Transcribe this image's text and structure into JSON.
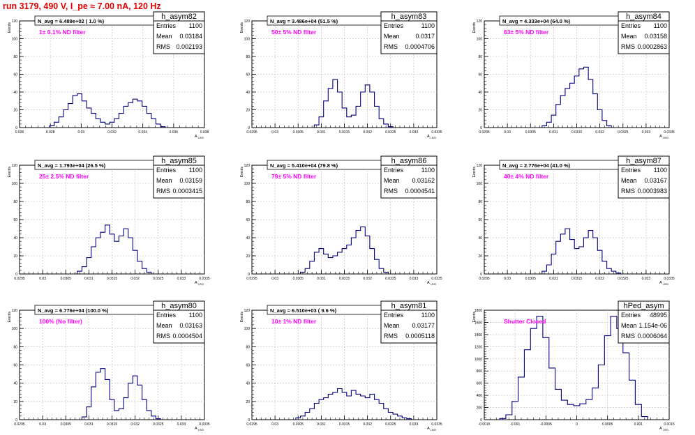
{
  "title": "run 3179,   490 V, I_pe ≈ 7.00 nA, 120 Hz",
  "colors": {
    "title": "#e00000",
    "annotation": "#ff00ff",
    "histogram": "#000080",
    "grid": "#c8c8c8"
  },
  "stat_labels": {
    "entries": "Entries",
    "mean": "Mean",
    "rms": "RMS"
  },
  "chart_data": [
    {
      "type": "histogram",
      "name": "h_asym82",
      "navg": "N_avg = 6.489e+02 ( 1.0 %)",
      "annotation": "1± 0.1% ND filter",
      "ylabel": "Events",
      "xlabel": "A",
      "xlabel_sub": "LR/D",
      "xlim": [
        0.026,
        0.038
      ],
      "ylim": [
        0,
        120
      ],
      "xticks": [
        "0.026",
        "0.028",
        "0.03",
        "0.032",
        "0.034",
        "0.036",
        "0.038"
      ],
      "yticks": [
        "0",
        "20",
        "40",
        "60",
        "80",
        "100",
        "120"
      ],
      "stats": {
        "entries": "1100",
        "mean": "0.03184",
        "rms": "0.002193"
      },
      "x": [
        0.0281,
        0.0284,
        0.0287,
        0.029,
        0.0293,
        0.0296,
        0.0299,
        0.0302,
        0.0305,
        0.0308,
        0.0311,
        0.0314,
        0.0317,
        0.032,
        0.0323,
        0.0326,
        0.0329,
        0.0332,
        0.0335,
        0.0338,
        0.0341,
        0.0344,
        0.0347,
        0.035,
        0.0353
      ],
      "y": [
        2,
        6,
        12,
        20,
        27,
        36,
        38,
        30,
        22,
        16,
        10,
        6,
        4,
        6,
        10,
        16,
        24,
        28,
        32,
        30,
        24,
        16,
        10,
        4,
        1
      ]
    },
    {
      "type": "histogram",
      "name": "h_asym83",
      "navg": "N_avg = 3.486e+04 (51.5 %)",
      "annotation": "50± 5% ND filter",
      "ylabel": "Events",
      "xlabel": "A",
      "xlabel_sub": "LR/D",
      "xlim": [
        0.0295,
        0.0335
      ],
      "ylim": [
        0,
        120
      ],
      "xticks": [
        "0.0295",
        "0.03",
        "0.0305",
        "0.031",
        "0.0315",
        "0.032",
        "0.0325",
        "0.033",
        "0.0335"
      ],
      "yticks": [
        "0",
        "20",
        "40",
        "60",
        "80",
        "100",
        "120"
      ],
      "stats": {
        "entries": "1100",
        "mean": "0.0317",
        "rms": "0.0004706"
      },
      "x": [
        0.0309,
        0.031,
        0.0311,
        0.0312,
        0.0313,
        0.0314,
        0.0315,
        0.0316,
        0.0317,
        0.0318,
        0.0319,
        0.032,
        0.0321,
        0.0322,
        0.0323,
        0.0324,
        0.0325
      ],
      "y": [
        3,
        12,
        30,
        44,
        54,
        40,
        22,
        12,
        14,
        24,
        40,
        48,
        40,
        24,
        10,
        4,
        1
      ]
    },
    {
      "type": "histogram",
      "name": "h_asym84",
      "navg": "N_avg = 4.333e+04 (64.0 %)",
      "annotation": "63± 5% ND filter",
      "ylabel": "Events",
      "xlabel": "A",
      "xlabel_sub": "LR/D",
      "xlim": [
        0.0295,
        0.0335
      ],
      "ylim": [
        0,
        120
      ],
      "xticks": [
        "0.0295",
        "0.03",
        "0.0305",
        "0.031",
        "0.0315",
        "0.032",
        "0.0325",
        "0.033",
        "0.0335"
      ],
      "yticks": [
        "0",
        "20",
        "40",
        "60",
        "80",
        "100",
        "120"
      ],
      "stats": {
        "entries": "1100",
        "mean": "0.03158",
        "rms": "0.0002863"
      },
      "x": [
        0.0308,
        0.0309,
        0.031,
        0.0311,
        0.0312,
        0.0313,
        0.0314,
        0.0315,
        0.0316,
        0.0317,
        0.0318,
        0.0319,
        0.032,
        0.0321,
        0.0322
      ],
      "y": [
        2,
        6,
        14,
        26,
        36,
        44,
        50,
        58,
        66,
        68,
        54,
        38,
        20,
        8,
        2
      ]
    },
    {
      "type": "histogram",
      "name": "h_asym85",
      "navg": "N_avg = 1.793e+04 (26.5 %)",
      "annotation": "25± 2.5% ND filter",
      "ylabel": "Events",
      "xlabel": "A",
      "xlabel_sub": "LR/D",
      "xlim": [
        0.0295,
        0.0335
      ],
      "ylim": [
        0,
        120
      ],
      "xticks": [
        "0.0295",
        "0.03",
        "0.0305",
        "0.031",
        "0.0315",
        "0.032",
        "0.0325",
        "0.033",
        "0.0335"
      ],
      "yticks": [
        "0",
        "20",
        "40",
        "60",
        "80",
        "100",
        "120"
      ],
      "stats": {
        "entries": "1100",
        "mean": "0.03159",
        "rms": "0.0003415"
      },
      "x": [
        0.0308,
        0.0309,
        0.031,
        0.0311,
        0.0312,
        0.0313,
        0.0314,
        0.0315,
        0.0316,
        0.0317,
        0.0318,
        0.0319,
        0.032,
        0.0321,
        0.0322,
        0.0323
      ],
      "y": [
        3,
        8,
        18,
        30,
        40,
        46,
        54,
        44,
        36,
        42,
        50,
        40,
        26,
        14,
        6,
        2
      ]
    },
    {
      "type": "histogram",
      "name": "h_asym86",
      "navg": "N_avg = 5.410e+04 (79.8 %)",
      "annotation": "79± 5% ND filter",
      "ylabel": "Events",
      "xlabel": "A",
      "xlabel_sub": "LR/D",
      "xlim": [
        0.0295,
        0.0335
      ],
      "ylim": [
        0,
        120
      ],
      "xticks": [
        "0.0295",
        "0.03",
        "0.0305",
        "0.031",
        "0.0315",
        "0.032",
        "0.0325",
        "0.033",
        "0.0335"
      ],
      "yticks": [
        "0",
        "20",
        "40",
        "60",
        "80",
        "100",
        "120"
      ],
      "stats": {
        "entries": "1100",
        "mean": "0.03162",
        "rms": "0.0004541"
      },
      "x": [
        0.0306,
        0.0307,
        0.0308,
        0.0309,
        0.031,
        0.0311,
        0.0312,
        0.0313,
        0.0314,
        0.0315,
        0.0316,
        0.0317,
        0.0318,
        0.0319,
        0.032,
        0.0321,
        0.0322,
        0.0323,
        0.0324
      ],
      "y": [
        2,
        6,
        14,
        24,
        28,
        22,
        18,
        20,
        24,
        28,
        32,
        40,
        48,
        52,
        42,
        28,
        16,
        6,
        2
      ]
    },
    {
      "type": "histogram",
      "name": "h_asym87",
      "navg": "N_avg = 2.776e+04 (41.0 %)",
      "annotation": "40± 4% ND filter",
      "ylabel": "Events",
      "xlabel": "A",
      "xlabel_sub": "LR/D",
      "xlim": [
        0.0295,
        0.0335
      ],
      "ylim": [
        0,
        120
      ],
      "xticks": [
        "0.0295",
        "0.03",
        "0.0305",
        "0.031",
        "0.0315",
        "0.032",
        "0.0325",
        "0.033",
        "0.0335"
      ],
      "yticks": [
        "0",
        "20",
        "40",
        "60",
        "80",
        "100",
        "120"
      ],
      "stats": {
        "entries": "1100",
        "mean": "0.03167",
        "rms": "0.0003983"
      },
      "x": [
        0.0308,
        0.0309,
        0.031,
        0.0311,
        0.0312,
        0.0313,
        0.0314,
        0.0315,
        0.0316,
        0.0317,
        0.0318,
        0.0319,
        0.032,
        0.0321,
        0.0322,
        0.0323,
        0.0324
      ],
      "y": [
        3,
        10,
        22,
        36,
        44,
        50,
        38,
        28,
        30,
        40,
        48,
        40,
        26,
        14,
        6,
        3,
        1
      ]
    },
    {
      "type": "histogram",
      "name": "h_asym80",
      "navg": "N_avg = 6.776e+04 (100.0 %)",
      "annotation": "100% (No filter)",
      "ylabel": "Events",
      "xlabel": "A",
      "xlabel_sub": "LR/D",
      "xlim": [
        0.0295,
        0.0335
      ],
      "ylim": [
        0,
        120
      ],
      "xticks": [
        "0.0295",
        "0.03",
        "0.0305",
        "0.031",
        "0.0315",
        "0.032",
        "0.0325",
        "0.033",
        "0.0335"
      ],
      "yticks": [
        "0",
        "20",
        "40",
        "60",
        "80",
        "100",
        "120"
      ],
      "stats": {
        "entries": "1100",
        "mean": "0.03163",
        "rms": "0.0004504"
      },
      "x": [
        0.0309,
        0.031,
        0.0311,
        0.0312,
        0.0313,
        0.0314,
        0.0315,
        0.0316,
        0.0317,
        0.0318,
        0.0319,
        0.032,
        0.0321,
        0.0322,
        0.0323,
        0.0324,
        0.0325
      ],
      "y": [
        3,
        14,
        36,
        52,
        56,
        44,
        22,
        10,
        12,
        24,
        40,
        48,
        38,
        22,
        10,
        4,
        1
      ]
    },
    {
      "type": "histogram",
      "name": "h_asym81",
      "navg": "N_avg = 6.510e+03 ( 9.6 %)",
      "annotation": "10± 1% ND filter",
      "ylabel": "Events",
      "xlabel": "A",
      "xlabel_sub": "LR/D",
      "xlim": [
        0.0295,
        0.0335
      ],
      "ylim": [
        0,
        120
      ],
      "xticks": [
        "0.0295",
        "0.03",
        "0.0305",
        "0.031",
        "0.0315",
        "0.032",
        "0.0325",
        "0.033",
        "0.0335"
      ],
      "yticks": [
        "0",
        "20",
        "40",
        "60",
        "80",
        "100",
        "120"
      ],
      "stats": {
        "entries": "1100",
        "mean": "0.03177",
        "rms": "0.0005118"
      },
      "x": [
        0.0305,
        0.0306,
        0.0307,
        0.0308,
        0.0309,
        0.031,
        0.0311,
        0.0312,
        0.0313,
        0.0314,
        0.0315,
        0.0316,
        0.0317,
        0.0318,
        0.0319,
        0.032,
        0.0321,
        0.0322,
        0.0323,
        0.0324,
        0.0325,
        0.0326,
        0.0327,
        0.0328,
        0.0329
      ],
      "y": [
        2,
        4,
        8,
        12,
        18,
        22,
        24,
        28,
        30,
        34,
        30,
        26,
        32,
        28,
        26,
        24,
        28,
        22,
        18,
        12,
        8,
        6,
        4,
        2,
        1
      ]
    },
    {
      "type": "histogram",
      "name": "hPed_asym",
      "navg": "",
      "annotation": "Shutter Closed",
      "ylabel": "Events",
      "xlabel": "A",
      "xlabel_sub": "LR/D",
      "xlim": [
        -0.0015,
        0.0015
      ],
      "ylim": [
        0,
        1800
      ],
      "xticks": [
        "-0.0015",
        "-0.001",
        "-0.0005",
        "0",
        "0.0005",
        "0.001",
        "0.0015"
      ],
      "yticks": [
        "0",
        "200",
        "400",
        "600",
        "800",
        "1000",
        "1200",
        "1400",
        "1600",
        "1800"
      ],
      "stats": {
        "entries": "48995",
        "mean": "1.154e-06",
        "rms": "0.0006064"
      },
      "x": [
        -0.0012,
        -0.0011,
        -0.001,
        -0.0009,
        -0.0008,
        -0.0007,
        -0.0006,
        -0.0005,
        -0.0004,
        -0.0003,
        -0.0002,
        -0.0001,
        0,
        0.0001,
        0.0002,
        0.0003,
        0.0004,
        0.0005,
        0.0006,
        0.0007,
        0.0008,
        0.0009,
        0.001,
        0.0011
      ],
      "y": [
        20,
        80,
        300,
        700,
        1150,
        1500,
        1700,
        1350,
        850,
        500,
        320,
        250,
        230,
        260,
        330,
        520,
        900,
        1380,
        1700,
        1500,
        1100,
        650,
        250,
        50
      ]
    }
  ]
}
